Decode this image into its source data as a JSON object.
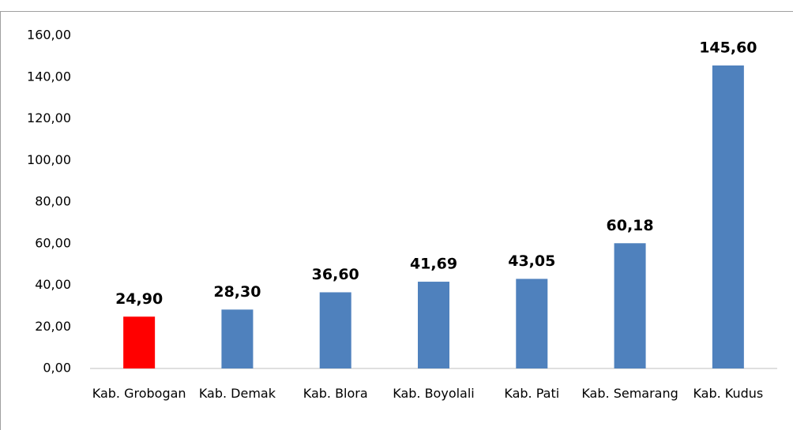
{
  "chart_data": {
    "type": "bar",
    "categories": [
      "Kab. Grobogan",
      "Kab. Demak",
      "Kab. Blora",
      "Kab. Boyolali",
      "Kab. Pati",
      "Kab. Semarang",
      "Kab. Kudus"
    ],
    "values": [
      24.9,
      28.3,
      36.6,
      41.69,
      43.05,
      60.18,
      145.6
    ],
    "value_labels": [
      "24,90",
      "28,30",
      "36,60",
      "41,69",
      "43,05",
      "60,18",
      "145,60"
    ],
    "colors": [
      "#ff0000",
      "#4f81bd",
      "#4f81bd",
      "#4f81bd",
      "#4f81bd",
      "#4f81bd",
      "#4f81bd"
    ],
    "ylim": [
      0,
      160
    ],
    "yticks": [
      {
        "value": 0,
        "label": "0,00"
      },
      {
        "value": 20,
        "label": "20,00"
      },
      {
        "value": 40,
        "label": "40,00"
      },
      {
        "value": 60,
        "label": "60,00"
      },
      {
        "value": 80,
        "label": "80,00"
      },
      {
        "value": 100,
        "label": "100,00"
      },
      {
        "value": 120,
        "label": "120,00"
      },
      {
        "value": 140,
        "label": "140,00"
      },
      {
        "value": 160,
        "label": "160,00"
      }
    ],
    "grid": false
  }
}
